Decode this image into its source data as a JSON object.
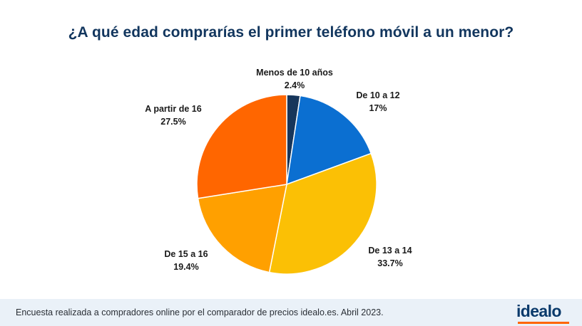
{
  "chart_data": {
    "type": "pie",
    "title": "¿A qué edad comprarías el primer teléfono móvil a un menor?",
    "slices": [
      {
        "label": "Menos de 10 años",
        "value": 2.4,
        "display": "2.4%",
        "color": "#17365b"
      },
      {
        "label": "De 10 a 12",
        "value": 17,
        "display": "17%",
        "color": "#0b6fd1"
      },
      {
        "label": "De 13 a 14",
        "value": 33.7,
        "display": "33.7%",
        "color": "#fbc005"
      },
      {
        "label": "De 15 a 16",
        "value": 19.4,
        "display": "19.4%",
        "color": "#ffa000"
      },
      {
        "label": "A partir de 16",
        "value": 27.5,
        "display": "27.5%",
        "color": "#ff6600"
      }
    ],
    "legend": "labels next to slices"
  },
  "footer": {
    "note": "Encuesta realizada a compradores online por el comparador de precios idealo.es.  Abril 2023."
  },
  "logo": {
    "text": "idealo"
  },
  "colors": {
    "title": "#12365e",
    "footer_background": "#eaf1f8",
    "logo_text": "#0a3a6b",
    "logo_accent": "#ff6600"
  }
}
